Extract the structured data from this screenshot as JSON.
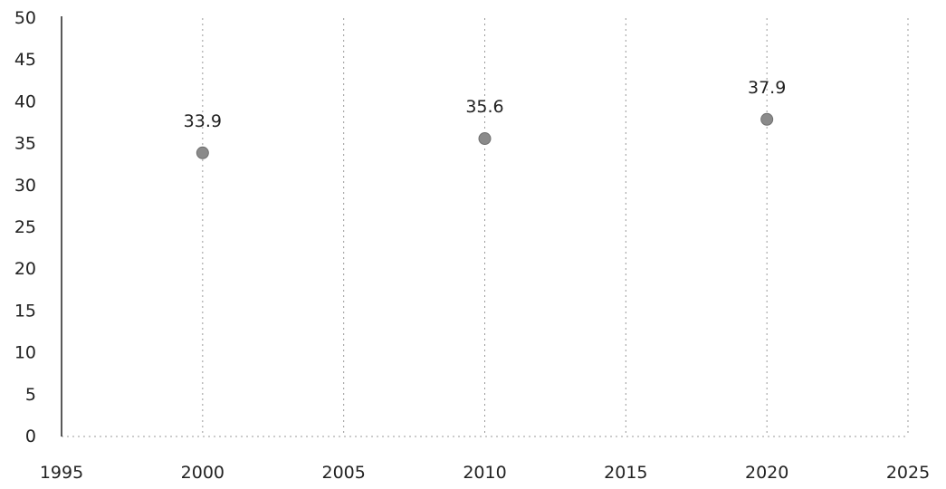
{
  "chart_data": {
    "type": "scatter",
    "title": "",
    "xlabel": "",
    "ylabel": "",
    "xlim": [
      1995,
      2025
    ],
    "ylim": [
      0,
      50
    ],
    "x_ticks": [
      1995,
      2000,
      2005,
      2010,
      2015,
      2020,
      2025
    ],
    "y_ticks": [
      0,
      5,
      10,
      15,
      20,
      25,
      30,
      35,
      40,
      45,
      50
    ],
    "grid": "vertical dotted",
    "legend": "none",
    "series": [
      {
        "color": "#8a8a8a",
        "points": [
          {
            "x": 2000,
            "y": 33.9,
            "label": "33.9"
          },
          {
            "x": 2010,
            "y": 35.6,
            "label": "35.6"
          },
          {
            "x": 2020,
            "y": 37.9,
            "label": "37.9"
          }
        ]
      }
    ]
  }
}
